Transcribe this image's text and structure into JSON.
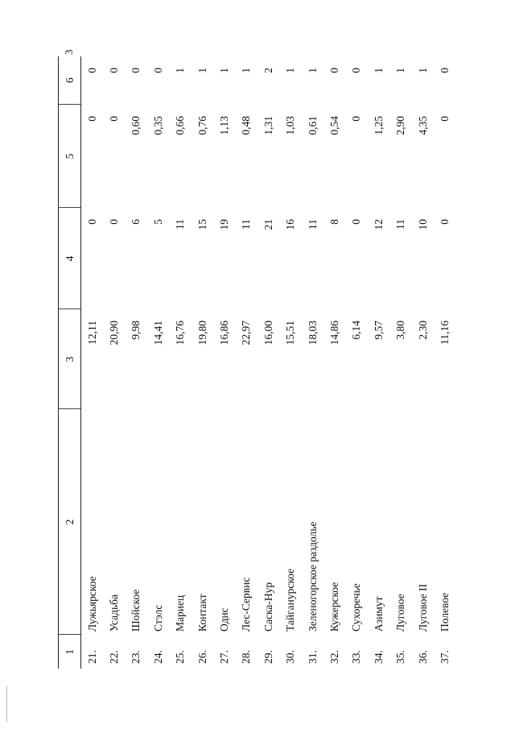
{
  "page_number": "3",
  "table": {
    "headers": [
      "1",
      "2",
      "3",
      "4",
      "5",
      "6"
    ],
    "rows": [
      [
        "21.",
        "Лужьярское",
        "12,11",
        "0",
        "0",
        "0"
      ],
      [
        "22.",
        "Усадьба",
        "20,90",
        "0",
        "0",
        "0"
      ],
      [
        "23.",
        "Шойское",
        "9,98",
        "6",
        "0,60",
        "0"
      ],
      [
        "24.",
        "Стэлс",
        "14,41",
        "5",
        "0,35",
        "0"
      ],
      [
        "25.",
        "Мариец",
        "16,76",
        "11",
        "0,66",
        "1"
      ],
      [
        "26.",
        "Контакт",
        "19,80",
        "15",
        "0,76",
        "1"
      ],
      [
        "27.",
        "Одис",
        "16,86",
        "19",
        "1,13",
        "1"
      ],
      [
        "28.",
        "Лес-Сервис",
        "22,97",
        "11",
        "0,48",
        "1"
      ],
      [
        "29.",
        "Саска-Нур",
        "16,00",
        "21",
        "1,31",
        "2"
      ],
      [
        "30.",
        "Тайганурское",
        "15,51",
        "16",
        "1,03",
        "1"
      ],
      [
        "31.",
        "Зеленогорское раздолье",
        "18,03",
        "11",
        "0,61",
        "1"
      ],
      [
        "32.",
        "Кужерское",
        "14,86",
        "8",
        "0,54",
        "0"
      ],
      [
        "33.",
        "Сухоречье",
        "6,14",
        "0",
        "0",
        "0"
      ],
      [
        "34.",
        "Азимут",
        "9,57",
        "12",
        "1,25",
        "1"
      ],
      [
        "35.",
        "Луговое",
        "3,80",
        "11",
        "2,90",
        "1"
      ],
      [
        "36.",
        "Луговое II",
        "2,30",
        "10",
        "4,35",
        "1"
      ],
      [
        "37.",
        "Полевое",
        "11,16",
        "0",
        "0",
        "0"
      ]
    ]
  }
}
